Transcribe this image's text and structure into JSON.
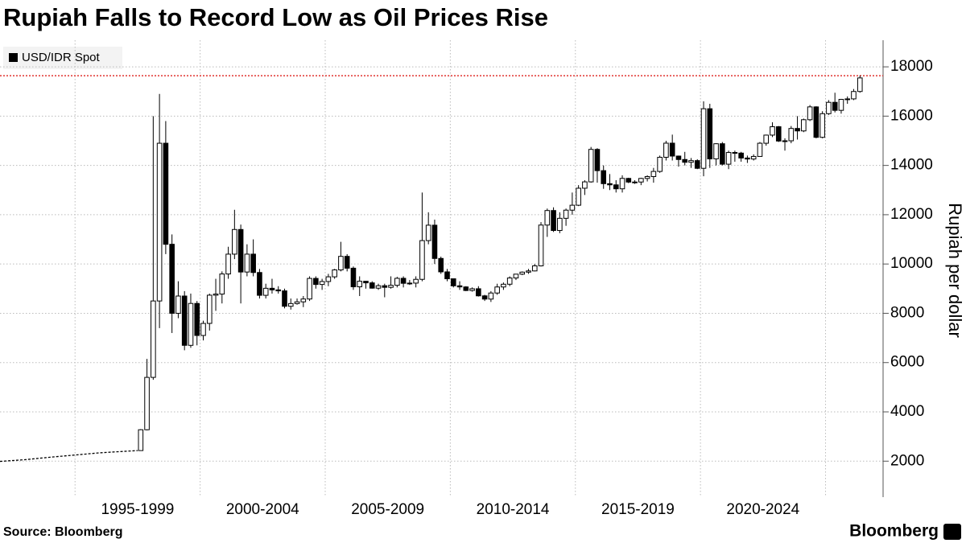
{
  "chart_data": {
    "type": "candlestick",
    "title": "Rupiah Falls to Record Low as Oil Prices Rise",
    "ylabel": "Rupiah per dollar",
    "source": "Source: Bloomberg",
    "brand": "Bloomberg",
    "xlim": [
      1992,
      2027.3
    ],
    "ylim": [
      540,
      19080
    ],
    "yticks": [
      2000,
      4000,
      6000,
      8000,
      10000,
      12000,
      14000,
      16000,
      18000
    ],
    "xticks": [
      1995,
      2000,
      2005,
      2010,
      2015,
      2020,
      2025
    ],
    "xtick_labels": [
      {
        "value": 1997.5,
        "label": "1995-1999"
      },
      {
        "value": 2002.5,
        "label": "2000-2004"
      },
      {
        "value": 2007.5,
        "label": "2005-2009"
      },
      {
        "value": 2012.5,
        "label": "2010-2014"
      },
      {
        "value": 2017.5,
        "label": "2015-2019"
      },
      {
        "value": 2022.5,
        "label": "2020-2024"
      }
    ],
    "grid": true,
    "reference_line": {
      "value": 17640,
      "color": "#e0332e"
    },
    "series": [
      {
        "name": "USD/IDR Spot",
        "color": "#000000",
        "up_color": "#ffffff",
        "down_color": "#000000",
        "line_x": [
          1992,
          1993,
          1994,
          1995,
          1996,
          1997.5
        ],
        "line_values": [
          1990,
          2060,
          2160,
          2250,
          2340,
          2430
        ],
        "x": [
          1997.625,
          1997.875,
          1998.125,
          1998.375,
          1998.625,
          1998.875,
          1999.125,
          1999.375,
          1999.625,
          1999.875,
          2000.125,
          2000.375,
          2000.625,
          2000.875,
          2001.125,
          2001.375,
          2001.625,
          2001.875,
          2002.125,
          2002.375,
          2002.625,
          2002.875,
          2003.125,
          2003.375,
          2003.625,
          2003.875,
          2004.125,
          2004.375,
          2004.625,
          2004.875,
          2005.125,
          2005.375,
          2005.625,
          2005.875,
          2006.125,
          2006.375,
          2006.625,
          2006.875,
          2007.125,
          2007.375,
          2007.625,
          2007.875,
          2008.125,
          2008.375,
          2008.625,
          2008.875,
          2009.125,
          2009.375,
          2009.625,
          2009.875,
          2010.125,
          2010.375,
          2010.625,
          2010.875,
          2011.125,
          2011.375,
          2011.625,
          2011.875,
          2012.125,
          2012.375,
          2012.625,
          2012.875,
          2013.125,
          2013.375,
          2013.625,
          2013.875,
          2014.125,
          2014.375,
          2014.625,
          2014.875,
          2015.125,
          2015.375,
          2015.625,
          2015.875,
          2016.125,
          2016.375,
          2016.625,
          2016.875,
          2017.125,
          2017.375,
          2017.625,
          2017.875,
          2018.125,
          2018.375,
          2018.625,
          2018.875,
          2019.125,
          2019.375,
          2019.625,
          2019.875,
          2020.125,
          2020.375,
          2020.625,
          2020.875,
          2021.125,
          2021.375,
          2021.625,
          2021.875,
          2022.125,
          2022.375,
          2022.625,
          2022.875,
          2023.125,
          2023.375,
          2023.625,
          2023.875,
          2024.125,
          2024.375,
          2024.625,
          2024.875,
          2025.125,
          2025.375,
          2025.625,
          2025.875,
          2026.125,
          2026.375
        ],
        "open": [
          2430,
          3275,
          5400,
          8500,
          14900,
          10800,
          8000,
          8700,
          6700,
          8400,
          7100,
          7590,
          8735,
          8780,
          9595,
          10400,
          11400,
          9675,
          10400,
          9655,
          8730,
          9015,
          8950,
          8910,
          8285,
          8395,
          8465,
          8580,
          9415,
          9170,
          9290,
          9480,
          9760,
          10310,
          9830,
          9075,
          9300,
          9235,
          9020,
          9118,
          9054,
          9137,
          9419,
          9217,
          9225,
          9378,
          10950,
          11575,
          10225,
          9681,
          9400,
          9115,
          9070,
          8925,
          8996,
          8708,
          8577,
          8823,
          9068,
          9180,
          9433,
          9588,
          9670,
          9719,
          9925,
          11580,
          12170,
          11360,
          11855,
          12185,
          12385,
          13075,
          13333,
          14650,
          13788,
          13260,
          13212,
          13051,
          13473,
          13325,
          13327,
          13472,
          13548,
          13756,
          14330,
          14903,
          14380,
          14240,
          14128,
          14195,
          13883,
          16300,
          14265,
          14880,
          14050,
          14525,
          14500,
          14300,
          14260,
          14365,
          14900,
          15230,
          15570,
          14990,
          15000,
          15500,
          15400,
          15855,
          16375,
          15140,
          16100,
          16560,
          16235,
          16680,
          16700,
          17000
        ],
        "high": [
          3300,
          6150,
          16000,
          16900,
          15800,
          11200,
          9300,
          8900,
          8800,
          8500,
          7700,
          8800,
          9400,
          9700,
          10700,
          12200,
          11600,
          10800,
          11000,
          9800,
          9200,
          9400,
          9100,
          9000,
          8600,
          8600,
          8700,
          9500,
          9500,
          9400,
          9600,
          9800,
          10900,
          10400,
          9900,
          9500,
          9300,
          9300,
          9200,
          9200,
          9500,
          9480,
          9500,
          9350,
          9500,
          12900,
          12100,
          11800,
          10300,
          9800,
          9400,
          9300,
          9100,
          9050,
          9100,
          8750,
          8900,
          9200,
          9250,
          9500,
          9600,
          9700,
          9800,
          10000,
          11700,
          12250,
          12300,
          12100,
          12250,
          12900,
          13200,
          13400,
          14750,
          14700,
          14000,
          13650,
          13400,
          13600,
          13500,
          13400,
          13500,
          13600,
          13900,
          14400,
          15000,
          15250,
          14400,
          14550,
          14300,
          14250,
          16600,
          16500,
          14900,
          14950,
          14600,
          14600,
          14550,
          14400,
          14450,
          14950,
          15250,
          15750,
          15600,
          15100,
          15600,
          16000,
          15900,
          16450,
          16400,
          16200,
          16650,
          16950,
          16700,
          16800,
          17100,
          17650
        ],
        "low": [
          2420,
          3250,
          5300,
          7400,
          10400,
          7200,
          7800,
          6500,
          6600,
          6700,
          6900,
          7300,
          8100,
          8400,
          9400,
          10200,
          8400,
          9500,
          9500,
          8600,
          8600,
          8800,
          8800,
          8200,
          8150,
          8350,
          8250,
          8500,
          9000,
          8950,
          9100,
          9400,
          9700,
          9700,
          8950,
          8700,
          9000,
          9000,
          8950,
          8650,
          9000,
          9050,
          9050,
          9150,
          9050,
          9300,
          10800,
          10000,
          9600,
          9300,
          9050,
          8950,
          8900,
          8880,
          8680,
          8500,
          8460,
          8750,
          8950,
          9100,
          9350,
          9550,
          9600,
          9700,
          9900,
          11100,
          11300,
          11250,
          11550,
          12000,
          12350,
          12800,
          13300,
          13300,
          13050,
          13000,
          12900,
          12900,
          13280,
          13250,
          13200,
          13350,
          13300,
          13700,
          14200,
          14200,
          13950,
          14000,
          13900,
          13850,
          13560,
          13900,
          14000,
          14000,
          13850,
          14150,
          14150,
          14100,
          14200,
          14350,
          14800,
          15150,
          14950,
          14600,
          14900,
          15050,
          15350,
          15800,
          15100,
          15100,
          16050,
          16150,
          16100,
          16500,
          16650,
          16950
        ],
        "close": [
          3275,
          5400,
          8500,
          14900,
          10800,
          8000,
          8700,
          6700,
          8400,
          7100,
          7590,
          8735,
          8780,
          9595,
          10400,
          11400,
          9675,
          10400,
          9655,
          8730,
          9015,
          8950,
          8910,
          8285,
          8395,
          8465,
          8580,
          9415,
          9170,
          9290,
          9480,
          9760,
          10310,
          9830,
          9075,
          9300,
          9235,
          9020,
          9118,
          9054,
          9137,
          9419,
          9217,
          9225,
          9378,
          10950,
          11575,
          10225,
          9681,
          9400,
          9115,
          9070,
          8925,
          8996,
          8708,
          8577,
          8823,
          9068,
          9180,
          9433,
          9588,
          9670,
          9719,
          9925,
          11580,
          12170,
          11360,
          11855,
          12185,
          12385,
          13075,
          13333,
          14650,
          13788,
          13260,
          13212,
          13051,
          13473,
          13325,
          13327,
          13472,
          13548,
          13756,
          14330,
          14903,
          14380,
          14240,
          14128,
          14195,
          13883,
          16300,
          14265,
          14880,
          14050,
          14525,
          14500,
          14300,
          14260,
          14365,
          14900,
          15230,
          15570,
          14990,
          15000,
          15500,
          15400,
          15855,
          16375,
          15140,
          16100,
          16560,
          16235,
          16680,
          16700,
          17000,
          17550
        ]
      }
    ]
  }
}
